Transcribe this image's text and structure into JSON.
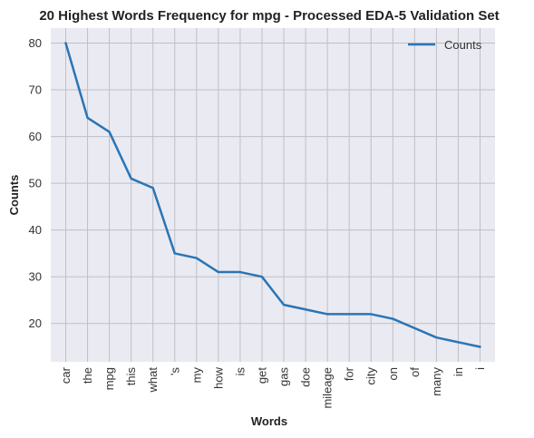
{
  "chart_data": {
    "type": "line",
    "title": "20 Highest Words Frequency for mpg - Processed EDA-5 Validation Set",
    "xlabel": "Words",
    "ylabel": "Counts",
    "categories": [
      "car",
      "the",
      "mpg",
      "this",
      "what",
      "'s",
      "my",
      "how",
      "is",
      "get",
      "gas",
      "doe",
      "mileage",
      "for",
      "city",
      "on",
      "of",
      "many",
      "in",
      "i"
    ],
    "series": [
      {
        "name": "Counts",
        "values": [
          80,
          64,
          61,
          51,
          49,
          35,
          34,
          31,
          31,
          30,
          24,
          23,
          22,
          22,
          22,
          21,
          19,
          17,
          16,
          15
        ]
      }
    ],
    "ylim": [
      11.8,
      83.2
    ],
    "yticks": [
      20,
      30,
      40,
      50,
      60,
      70,
      80
    ],
    "grid": true,
    "legend_position": "top-right",
    "colors": {
      "line": "#2a75b6",
      "plot_background": "#eaeaf2",
      "grid": "#bfbfc4"
    }
  }
}
